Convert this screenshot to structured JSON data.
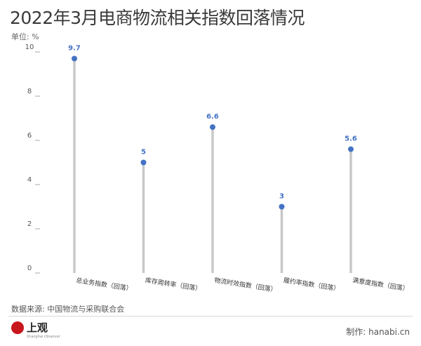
{
  "header": {
    "title": "2022年3月电商物流相关指数回落情况",
    "unit": "单位: %"
  },
  "footer": {
    "source": "数据来源: 中国物流与采购联合会",
    "logo_text": "上观",
    "logo_sub": "Shanghai Observer",
    "maker": "制作: hanabi.cn"
  },
  "colors": {
    "point": "#4472c4",
    "stem": "#c8c8c8",
    "label": "#4472c4",
    "logo": "#c8161d"
  },
  "chart_data": {
    "type": "lollipop",
    "categories": [
      "总业务指数（回落）",
      "库存周转率（回落）",
      "物流时效指数（回落）",
      "履约率指数（回落）",
      "满意度指数（回落）"
    ],
    "values": [
      9.7,
      5,
      6.6,
      3,
      5.6
    ],
    "value_labels": [
      "9.7",
      "5",
      "6.6",
      "3",
      "5.6"
    ],
    "ylim": [
      0,
      10
    ],
    "yticks": [
      0,
      2,
      4,
      6,
      8,
      10
    ],
    "grid": false
  }
}
